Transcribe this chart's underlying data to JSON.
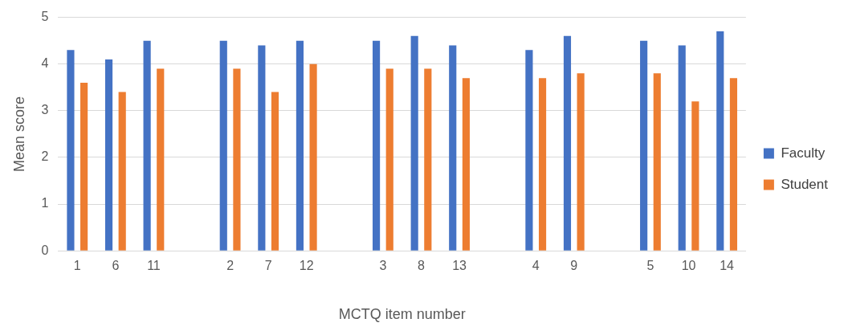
{
  "chart_data": {
    "type": "bar",
    "xlabel": "MCTQ item number",
    "ylabel": "Mean score",
    "categories": [
      "1",
      "6",
      "11",
      null,
      "2",
      "7",
      "12",
      null,
      "3",
      "8",
      "13",
      null,
      "4",
      "9",
      null,
      "5",
      "10",
      "14"
    ],
    "series": [
      {
        "name": "Faculty",
        "color": "#4472c4",
        "values": [
          4.3,
          4.1,
          4.5,
          null,
          4.5,
          4.4,
          4.5,
          null,
          4.5,
          4.6,
          4.4,
          null,
          4.3,
          4.6,
          null,
          4.5,
          4.4,
          4.7
        ]
      },
      {
        "name": "Student",
        "color": "#ed7d31",
        "values": [
          3.6,
          3.4,
          3.9,
          null,
          3.9,
          3.4,
          4.0,
          null,
          3.9,
          3.9,
          3.7,
          null,
          3.7,
          3.8,
          null,
          3.8,
          3.2,
          3.7
        ]
      }
    ],
    "ylim": [
      0,
      5
    ],
    "yticks": [
      0,
      1,
      2,
      3,
      4,
      5
    ],
    "grid": "y",
    "legend": "right"
  }
}
